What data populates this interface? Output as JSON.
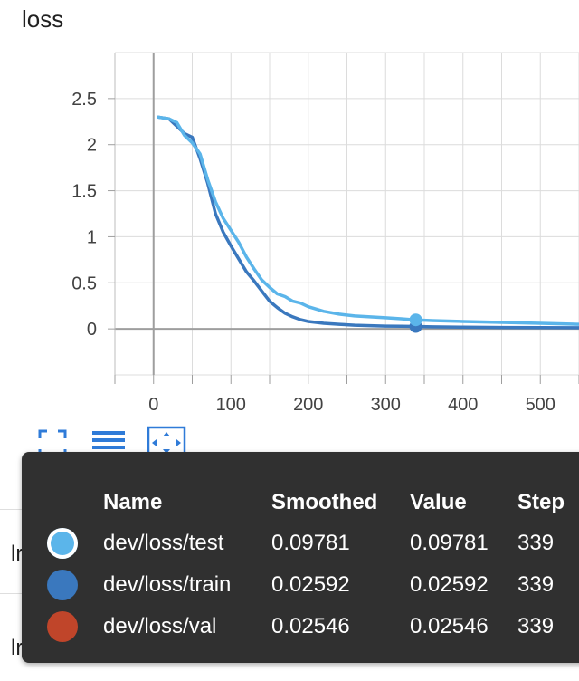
{
  "card": {
    "title": "loss"
  },
  "background_rows": [
    "lr",
    "lr"
  ],
  "chart_data": {
    "type": "line",
    "title": "loss",
    "xlabel": "",
    "ylabel": "",
    "xlim": [
      -50,
      550
    ],
    "ylim": [
      -0.5,
      3.0
    ],
    "x_ticks": [
      "0",
      "100",
      "200",
      "300",
      "400",
      "500"
    ],
    "x_tick_values": [
      0,
      100,
      200,
      300,
      400,
      500
    ],
    "y_ticks": [
      "0",
      "0.5",
      "1",
      "1.5",
      "2",
      "2.5"
    ],
    "y_tick_values": [
      0,
      0.5,
      1,
      1.5,
      2,
      2.5
    ],
    "grid": true,
    "colors": {
      "test": "#5bb5ea",
      "train": "#3a78be",
      "val": "#c0452a"
    },
    "series": [
      {
        "name": "dev/loss/train",
        "x": [
          5,
          20,
          30,
          40,
          50,
          60,
          70,
          80,
          90,
          100,
          110,
          120,
          130,
          140,
          150,
          160,
          170,
          180,
          190,
          200,
          220,
          240,
          260,
          280,
          300,
          320,
          339,
          360,
          400,
          450,
          500,
          550
        ],
        "y": [
          2.3,
          2.28,
          2.2,
          2.12,
          2.08,
          1.85,
          1.58,
          1.25,
          1.05,
          0.9,
          0.76,
          0.62,
          0.52,
          0.41,
          0.3,
          0.23,
          0.17,
          0.13,
          0.1,
          0.08,
          0.06,
          0.05,
          0.04,
          0.035,
          0.03,
          0.028,
          0.02592,
          0.022,
          0.018,
          0.015,
          0.013,
          0.012
        ]
      },
      {
        "name": "dev/loss/test",
        "x": [
          5,
          20,
          30,
          40,
          50,
          60,
          70,
          80,
          90,
          100,
          110,
          120,
          130,
          140,
          150,
          160,
          170,
          180,
          190,
          200,
          220,
          240,
          260,
          280,
          300,
          320,
          339,
          360,
          400,
          450,
          500,
          550
        ],
        "y": [
          2.3,
          2.28,
          2.24,
          2.1,
          2.02,
          1.9,
          1.62,
          1.38,
          1.2,
          1.07,
          0.94,
          0.78,
          0.65,
          0.53,
          0.45,
          0.38,
          0.35,
          0.3,
          0.28,
          0.24,
          0.19,
          0.16,
          0.14,
          0.13,
          0.12,
          0.11,
          0.09781,
          0.09,
          0.08,
          0.07,
          0.06,
          0.05
        ]
      },
      {
        "name": "dev/loss/val",
        "x": [],
        "y": []
      }
    ],
    "hover_step": 339
  },
  "tooltip": {
    "headers": {
      "name": "Name",
      "smoothed": "Smoothed",
      "value": "Value",
      "step": "Step"
    },
    "rows": [
      {
        "name": "dev/loss/test",
        "smoothed": "0.09781",
        "value": "0.09781",
        "step": "339",
        "color": "#5bb5ea",
        "selected": true
      },
      {
        "name": "dev/loss/train",
        "smoothed": "0.02592",
        "value": "0.02592",
        "step": "339",
        "color": "#3a78be",
        "selected": false
      },
      {
        "name": "dev/loss/val",
        "smoothed": "0.02546",
        "value": "0.02546",
        "step": "339",
        "color": "#c0452a",
        "selected": false
      }
    ]
  },
  "toolbar": {
    "icons": [
      "fullscreen-icon",
      "legend-toggle-icon",
      "fit-domain-icon"
    ],
    "accent": "#2f7bd8"
  }
}
